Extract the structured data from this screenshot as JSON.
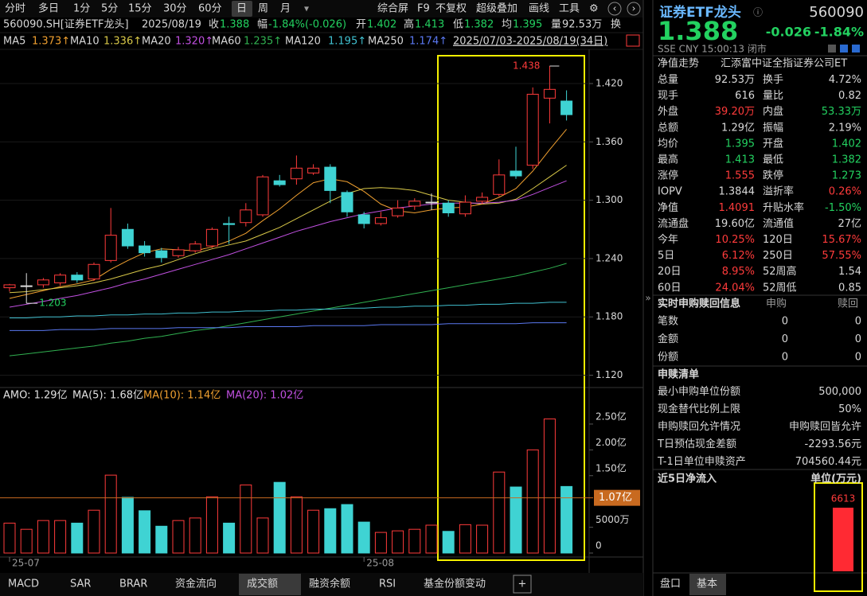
{
  "toolbar": {
    "periods": [
      "分时",
      "多日",
      "1分",
      "5分",
      "15分",
      "30分",
      "60分",
      "日",
      "周",
      "月"
    ],
    "tools": [
      "综合屏",
      "F9",
      "不复权",
      "超级叠加",
      "画线",
      "工具"
    ]
  },
  "info_bar": {
    "symbol": "560090.SH[证券ETF龙头]",
    "date": "2025/08/19",
    "items": [
      {
        "label": "收",
        "value": "1.388"
      },
      {
        "label": "幅",
        "value": "-1.84%(-0.026)"
      },
      {
        "label": "开",
        "value": "1.402"
      },
      {
        "label": "高",
        "value": "1.413"
      },
      {
        "label": "低",
        "value": "1.382"
      },
      {
        "label": "均",
        "value": "1.395"
      },
      {
        "label": "量",
        "value": "92.53万"
      },
      {
        "label": "换"
      }
    ],
    "range": "2025/07/03-2025/08/19(34日)"
  },
  "chart": {
    "type": "candlestick",
    "categories": [
      "25-07",
      null,
      null,
      null,
      null,
      null,
      null,
      null,
      null,
      null,
      null,
      null,
      null,
      null,
      null,
      null,
      null,
      null,
      null,
      null,
      null,
      "25-08",
      null,
      null,
      null,
      null,
      null,
      null,
      null,
      null,
      null,
      null,
      null,
      null
    ],
    "candles": [
      [
        1.21,
        1.214,
        1.206,
        1.213
      ],
      [
        1.212,
        1.225,
        1.203,
        1.212
      ],
      [
        1.213,
        1.22,
        1.21,
        1.218
      ],
      [
        1.215,
        1.225,
        1.212,
        1.223
      ],
      [
        1.223,
        1.226,
        1.215,
        1.218
      ],
      [
        1.219,
        1.236,
        1.217,
        1.234
      ],
      [
        1.238,
        1.292,
        1.236,
        1.264
      ],
      [
        1.27,
        1.276,
        1.25,
        1.253
      ],
      [
        1.253,
        1.258,
        1.242,
        1.246
      ],
      [
        1.248,
        1.251,
        1.236,
        1.241
      ],
      [
        1.243,
        1.252,
        1.241,
        1.249
      ],
      [
        1.248,
        1.258,
        1.246,
        1.255
      ],
      [
        1.253,
        1.272,
        1.251,
        1.27
      ],
      [
        1.276,
        1.283,
        1.255,
        1.275
      ],
      [
        1.277,
        1.297,
        1.273,
        1.29
      ],
      [
        1.285,
        1.326,
        1.283,
        1.324
      ],
      [
        1.32,
        1.326,
        1.314,
        1.316
      ],
      [
        1.322,
        1.346,
        1.316,
        1.333
      ],
      [
        1.328,
        1.337,
        1.326,
        1.333
      ],
      [
        1.334,
        1.337,
        1.297,
        1.31
      ],
      [
        1.308,
        1.31,
        1.283,
        1.288
      ],
      [
        1.285,
        1.288,
        1.271,
        1.276
      ],
      [
        1.276,
        1.288,
        1.274,
        1.282
      ],
      [
        1.284,
        1.3,
        1.282,
        1.292
      ],
      [
        1.294,
        1.302,
        1.29,
        1.299
      ],
      [
        1.298,
        1.307,
        1.29,
        1.298
      ],
      [
        1.297,
        1.3,
        1.283,
        1.287
      ],
      [
        1.286,
        1.305,
        1.283,
        1.298
      ],
      [
        1.299,
        1.308,
        1.296,
        1.303
      ],
      [
        1.306,
        1.342,
        1.304,
        1.326
      ],
      [
        1.33,
        1.355,
        1.322,
        1.325
      ],
      [
        1.336,
        1.416,
        1.332,
        1.409
      ],
      [
        1.405,
        1.438,
        1.379,
        1.414
      ],
      [
        1.402,
        1.413,
        1.382,
        1.388
      ]
    ],
    "ylim": [
      1.109,
      1.447
    ],
    "yticks": [
      {
        "value": 1.12,
        "label": "1.120"
      },
      {
        "value": 1.18,
        "label": "1.180"
      },
      {
        "value": 1.24,
        "label": "1.240"
      },
      {
        "value": 1.3,
        "label": "1.300"
      },
      {
        "value": 1.36,
        "label": "1.360"
      },
      {
        "value": 1.42,
        "label": "1.420"
      }
    ],
    "up_color": "#ff3b3b",
    "down_color": "#3fd3d3",
    "ma": [
      {
        "name": "MA5",
        "legend": "1.373↑",
        "color": "#f0a030",
        "values": [
          1.199,
          1.203,
          1.207,
          1.211,
          1.214,
          1.218,
          1.229,
          1.238,
          1.246,
          1.25,
          1.249,
          1.248,
          1.252,
          1.258,
          1.266,
          1.279,
          1.291,
          1.305,
          1.318,
          1.322,
          1.319,
          1.309,
          1.296,
          1.289,
          1.287,
          1.29,
          1.292,
          1.293,
          1.296,
          1.303,
          1.312,
          1.33,
          1.352,
          1.373
        ]
      },
      {
        "name": "MA10",
        "legend": "1.336↑",
        "color": "#d8c848",
        "values": [
          1.205,
          1.206,
          1.208,
          1.21,
          1.212,
          1.215,
          1.219,
          1.224,
          1.229,
          1.233,
          1.239,
          1.245,
          1.25,
          1.254,
          1.258,
          1.265,
          1.272,
          1.281,
          1.29,
          1.299,
          1.307,
          1.312,
          1.313,
          1.312,
          1.31,
          1.305,
          1.3,
          1.298,
          1.296,
          1.297,
          1.301,
          1.312,
          1.324,
          1.336
        ]
      },
      {
        "name": "MA20",
        "legend": "1.320↑",
        "color": "#c050e0",
        "values": [
          1.19,
          1.193,
          1.196,
          1.199,
          1.202,
          1.206,
          1.21,
          1.215,
          1.219,
          1.224,
          1.229,
          1.234,
          1.239,
          1.244,
          1.25,
          1.256,
          1.262,
          1.268,
          1.273,
          1.278,
          1.282,
          1.286,
          1.289,
          1.292,
          1.294,
          1.296,
          1.297,
          1.297,
          1.297,
          1.298,
          1.3,
          1.306,
          1.313,
          1.32
        ]
      },
      {
        "name": "MA60",
        "legend": "1.235↑",
        "color": "#30b050",
        "values": [
          1.14,
          1.142,
          1.144,
          1.146,
          1.148,
          1.15,
          1.153,
          1.155,
          1.158,
          1.16,
          1.163,
          1.166,
          1.168,
          1.171,
          1.174,
          1.177,
          1.18,
          1.183,
          1.186,
          1.189,
          1.192,
          1.195,
          1.198,
          1.201,
          1.204,
          1.207,
          1.21,
          1.213,
          1.216,
          1.219,
          1.222,
          1.226,
          1.23,
          1.235
        ]
      },
      {
        "name": "MA120",
        "legend": "1.195↑",
        "color": "#40c0d0",
        "values": [
          1.179,
          1.179,
          1.18,
          1.18,
          1.181,
          1.181,
          1.182,
          1.182,
          1.183,
          1.183,
          1.184,
          1.184,
          1.185,
          1.185,
          1.186,
          1.186,
          1.187,
          1.187,
          1.188,
          1.188,
          1.189,
          1.189,
          1.19,
          1.19,
          1.191,
          1.191,
          1.192,
          1.192,
          1.193,
          1.193,
          1.194,
          1.194,
          1.195,
          1.195
        ]
      },
      {
        "name": "MA250",
        "legend": "1.174↑",
        "color": "#5a78f0",
        "values": [
          1.166,
          1.166,
          1.166,
          1.167,
          1.167,
          1.167,
          1.168,
          1.168,
          1.168,
          1.168,
          1.169,
          1.169,
          1.169,
          1.169,
          1.17,
          1.17,
          1.17,
          1.17,
          1.171,
          1.171,
          1.171,
          1.171,
          1.172,
          1.172,
          1.172,
          1.172,
          1.173,
          1.173,
          1.173,
          1.173,
          1.173,
          1.174,
          1.174,
          1.174
        ]
      }
    ]
  },
  "volume_chart": {
    "type": "bar",
    "legend": [
      {
        "text": "AMO: 1.29亿",
        "color": "#e0e0e0"
      },
      {
        "text": "MA(5): 1.68亿",
        "color": "#e0e0e0"
      },
      {
        "text": "MA(10): 1.14亿",
        "color": "#f0a030"
      },
      {
        "text": "MA(20): 1.02亿",
        "color": "#c050e0"
      }
    ],
    "values": [
      0.58,
      0.46,
      0.63,
      0.63,
      0.58,
      0.83,
      1.51,
      1.08,
      0.82,
      0.52,
      0.63,
      0.68,
      1.09,
      0.58,
      1.32,
      0.68,
      1.37,
      1.09,
      0.83,
      0.86,
      0.94,
      0.6,
      0.4,
      0.43,
      0.46,
      0.54,
      0.42,
      0.55,
      0.54,
      1.57,
      1.28,
      2.0,
      2.6,
      1.29
    ],
    "ylim": [
      0,
      2.9
    ],
    "yticks": [
      0,
      {
        "value": 0.5,
        "label": "5000万"
      },
      {
        "value": 1.5,
        "label": "1.50亿"
      },
      {
        "value": 2,
        "label": "2.00亿"
      },
      {
        "value": 2.5,
        "label": "2.50亿"
      }
    ],
    "marker": {
      "value": 1.07,
      "label": "1.07亿",
      "color": "#c86a20"
    }
  },
  "bottom_tabs": [
    "MACD",
    "SAR",
    "BRAR",
    "资金流向",
    "成交额",
    "融资余额",
    "RSI",
    "基金份额变动"
  ],
  "quote": {
    "name": "证券ETF龙头",
    "code": "560090",
    "price": "1.388",
    "change": "-0.026",
    "change_pct": "-1.84%",
    "status": "SSE  CNY  15:00:13  闭市",
    "nav_label": "净值走势",
    "fund_name": "汇添富中证全指证券公司ET",
    "rows": [
      [
        "总量",
        "92.53万",
        "换手",
        "4.72%"
      ],
      [
        "现手",
        "616",
        "量比",
        "0.82"
      ],
      [
        "外盘",
        "39.20万",
        "内盘",
        "53.33万"
      ],
      [
        "总额",
        "1.29亿",
        "振幅",
        "2.19%"
      ],
      [
        "均价",
        "1.395",
        "开盘",
        "1.402"
      ],
      [
        "最高",
        "1.413",
        "最低",
        "1.382"
      ],
      [
        "涨停",
        "1.555",
        "跌停",
        "1.273"
      ],
      [
        "IOPV",
        "1.3844",
        "溢折率",
        "0.26%"
      ],
      [
        "净值",
        "1.4091",
        "升贴水率",
        "-1.50%"
      ],
      [
        "流通盘",
        "19.60亿",
        "流通值",
        "27亿"
      ],
      [
        "今年",
        "10.25%",
        "120日",
        "15.67%"
      ],
      [
        "5日",
        "6.12%",
        "250日",
        "57.55%"
      ],
      [
        "20日",
        "8.95%",
        "52周高",
        "1.54"
      ],
      [
        "60日",
        "24.04%",
        "52周低",
        "0.85"
      ]
    ],
    "realtime": {
      "header": [
        "实时申购赎回信息",
        "申购",
        "赎回"
      ],
      "rows": [
        [
          "笔数",
          "0",
          "0"
        ],
        [
          "金额",
          "0",
          "0"
        ],
        [
          "份额",
          "0",
          "0"
        ]
      ]
    },
    "list": {
      "title": "申赎清单",
      "rows": [
        [
          "最小申购单位份额",
          "500,000"
        ],
        [
          "现金替代比例上限",
          "50%"
        ],
        [
          "申购赎回允许情况",
          "申购赎回皆允许"
        ],
        [
          "T日预估现金差额",
          "-2293.56元"
        ],
        [
          "T-1日单位申赎资产",
          "704560.44元"
        ]
      ]
    },
    "net_inflow": {
      "title": "近5日净流入",
      "unit": "单位(万元)",
      "values": [
        6613
      ],
      "color": "#ff2a33"
    },
    "tabs": [
      "盘口",
      "基本"
    ]
  }
}
